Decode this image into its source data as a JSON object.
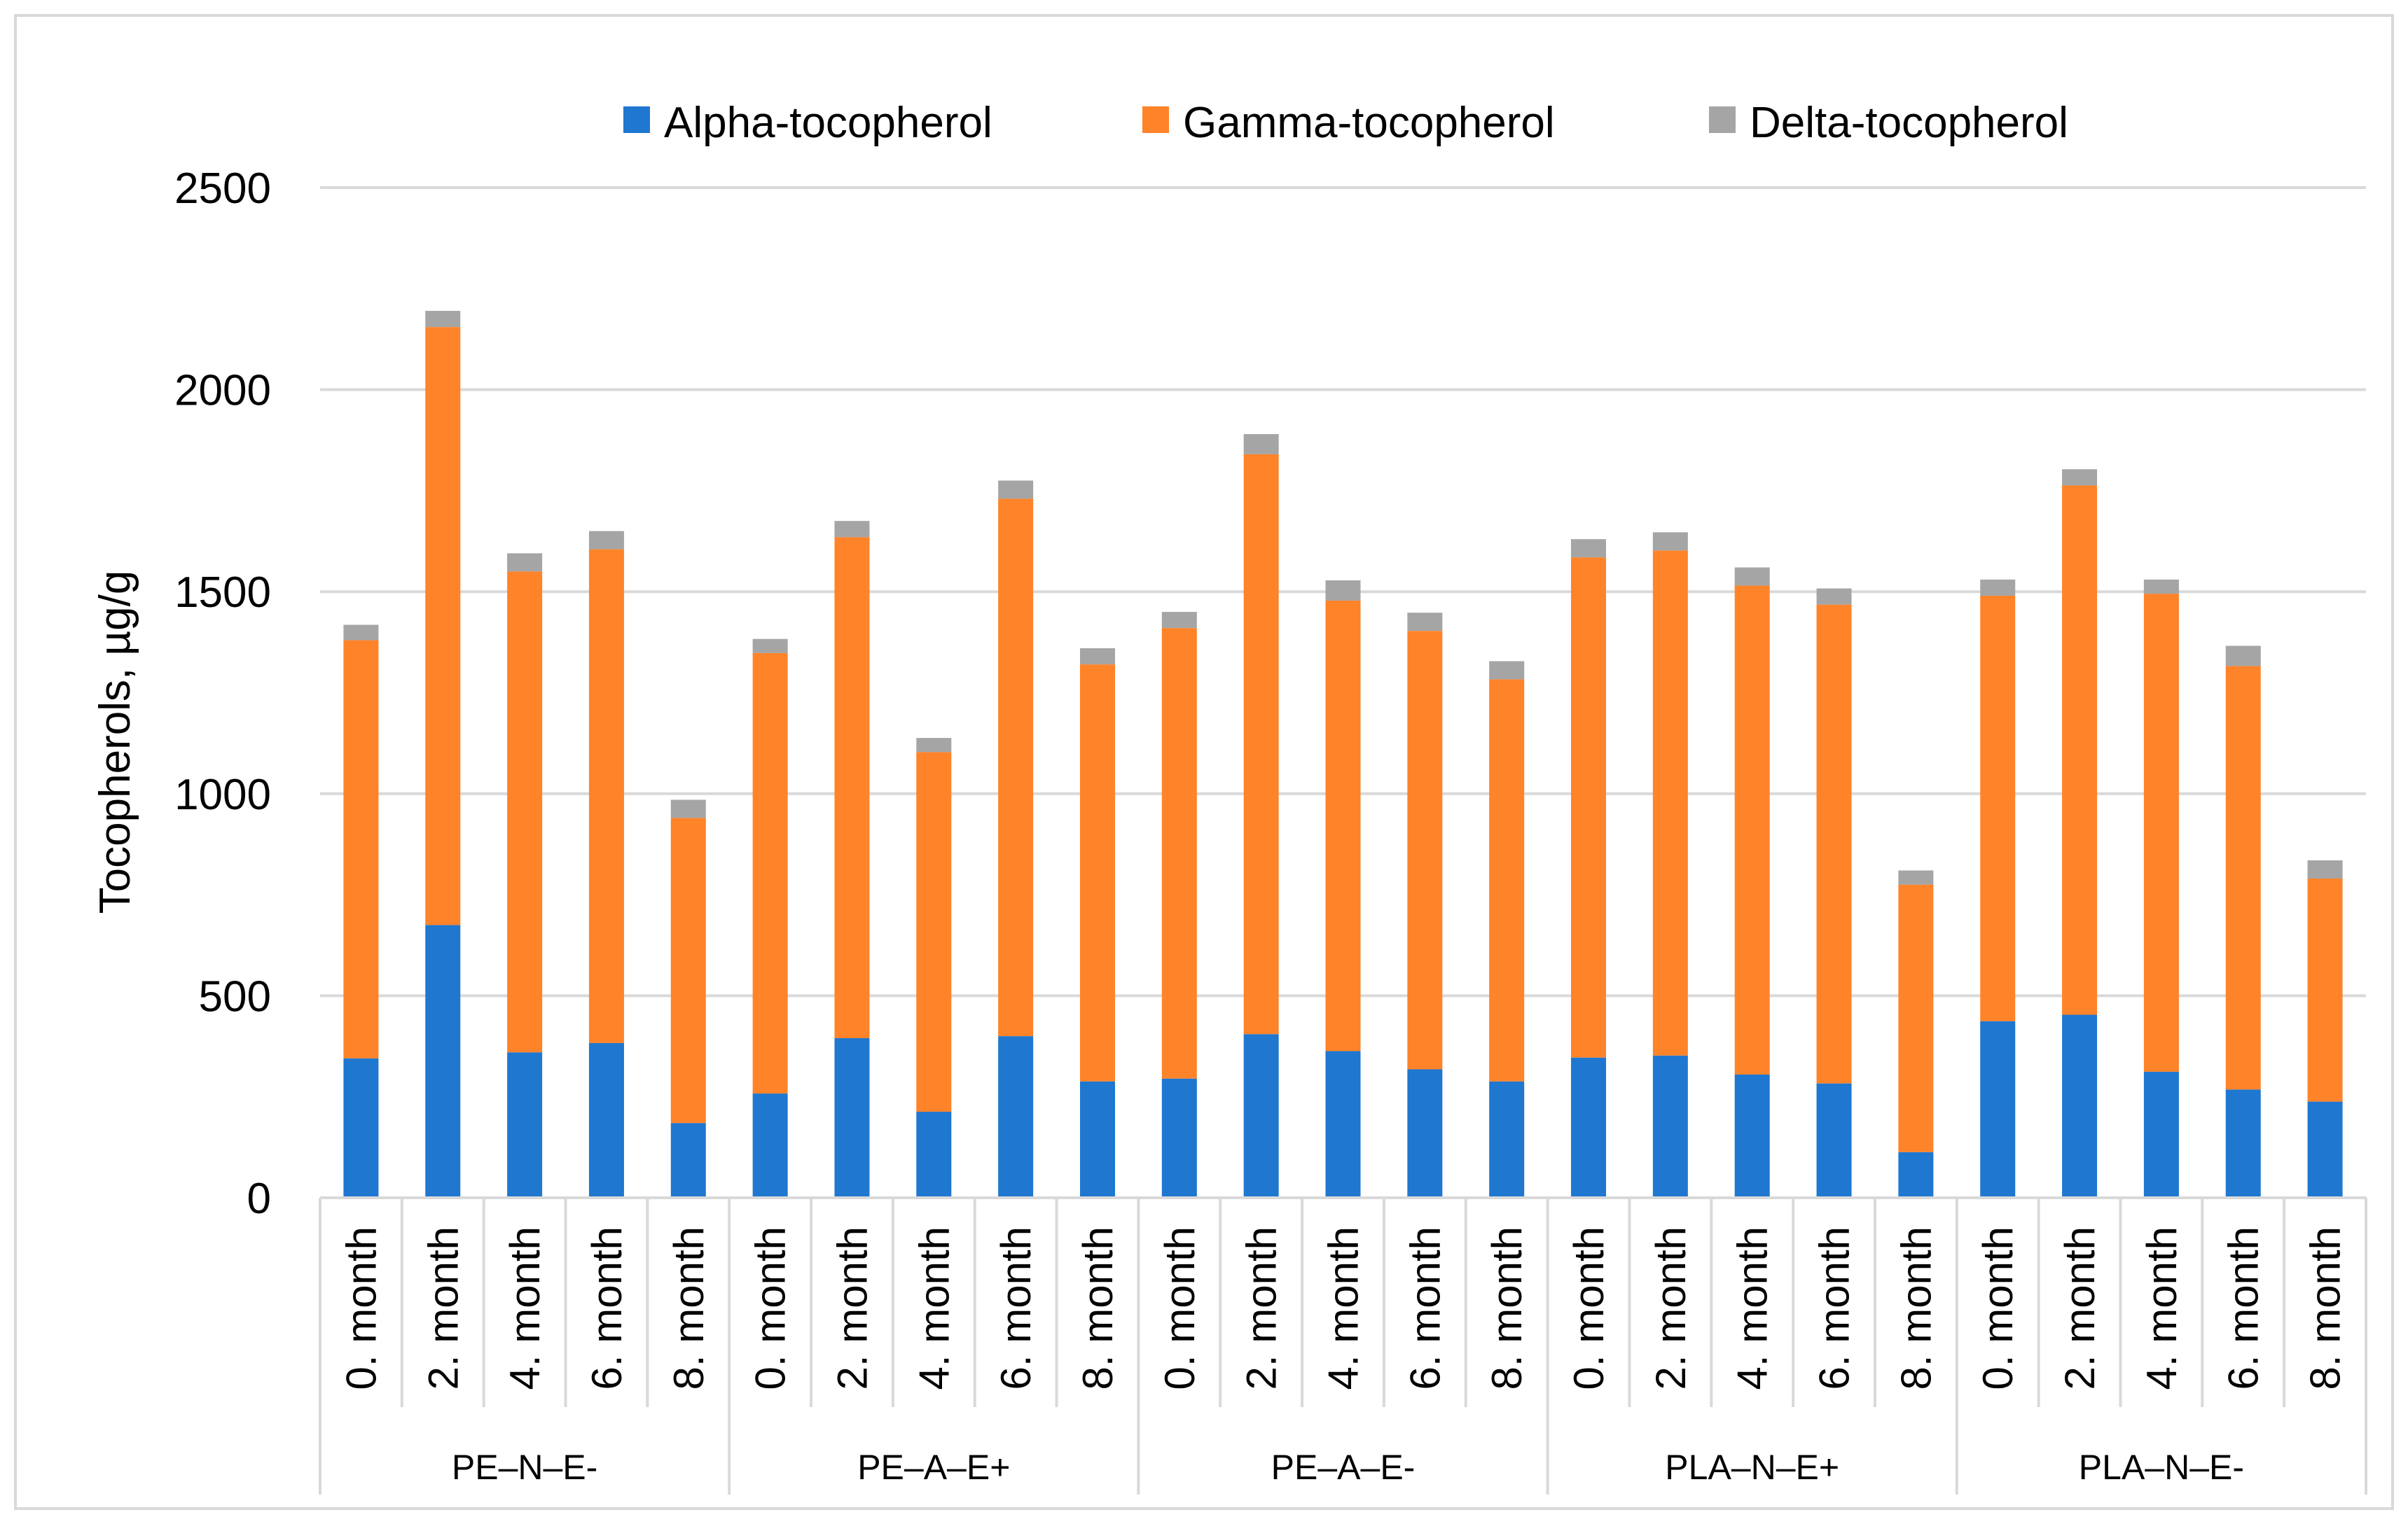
{
  "chart_data": {
    "type": "bar",
    "stacked": true,
    "title": "",
    "xlabel": "",
    "ylabel": "Tocopherols, µg/g",
    "ylim": [
      0,
      2500
    ],
    "yticks": [
      0,
      500,
      1000,
      1500,
      2000,
      2500
    ],
    "grid": true,
    "legend_position": "top",
    "groups": [
      {
        "label": "PE–N–E-",
        "months": [
          "0. month",
          "2. month",
          "4. month",
          "6. month",
          "8. month"
        ]
      },
      {
        "label": "PE–A–E+",
        "months": [
          "0. month",
          "2. month",
          "4. month",
          "6. month",
          "8. month"
        ]
      },
      {
        "label": "PE–A–E-",
        "months": [
          "0. month",
          "2. month",
          "4. month",
          "6. month",
          "8. month"
        ]
      },
      {
        "label": "PLA–N–E+",
        "months": [
          "0. month",
          "2. month",
          "4. month",
          "6. month",
          "8. month"
        ]
      },
      {
        "label": "PLA–N–E-",
        "months": [
          "0. month",
          "2. month",
          "4. month",
          "6. month",
          "8. month"
        ]
      }
    ],
    "series": [
      {
        "name": "Alpha-tocopherol",
        "color": "#1F77D0",
        "values": [
          345,
          675,
          360,
          383,
          185,
          258,
          395,
          213,
          400,
          288,
          295,
          405,
          363,
          318,
          288,
          347,
          352,
          305,
          283,
          113,
          437,
          453,
          312,
          268,
          238
        ]
      },
      {
        "name": "Gamma-tocopherol",
        "color": "#FF8329",
        "values": [
          1035,
          1480,
          1190,
          1222,
          755,
          1090,
          1240,
          890,
          1330,
          1032,
          1115,
          1435,
          1115,
          1085,
          995,
          1238,
          1250,
          1210,
          1185,
          662,
          1053,
          1310,
          1183,
          1048,
          552
        ]
      },
      {
        "name": "Delta-tocopherol",
        "color": "#A5A5A5",
        "values": [
          38,
          40,
          45,
          45,
          45,
          35,
          40,
          35,
          45,
          40,
          40,
          50,
          50,
          45,
          45,
          45,
          45,
          45,
          40,
          35,
          40,
          40,
          35,
          50,
          45
        ]
      }
    ]
  }
}
